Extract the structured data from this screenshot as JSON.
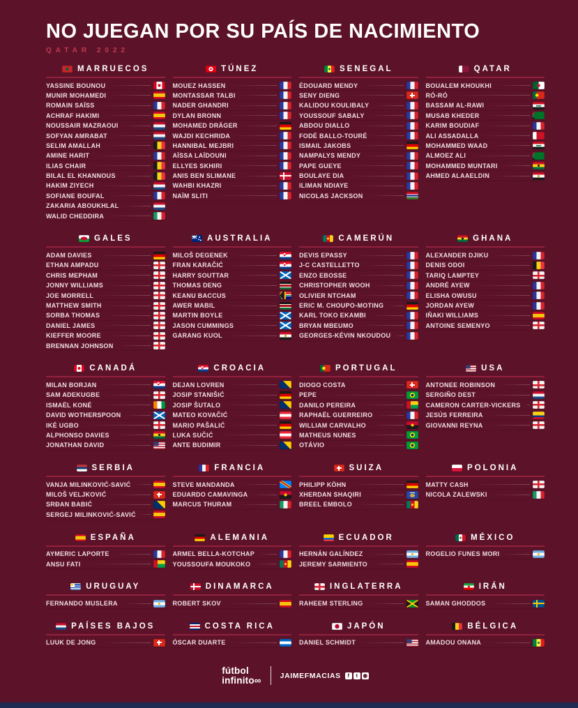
{
  "theme": {
    "background": "#5c1228",
    "accent_line": "#93203f",
    "subtitle_color": "#c23a52",
    "name_color": "#eedee3",
    "bottom_bar": "#1f2b52"
  },
  "header": {
    "title": "NO JUEGAN POR SU PAÍS DE NACIMIENTO",
    "subtitle": "QATAR 2022"
  },
  "footer": {
    "brand_line1": "fútbol",
    "brand_line2": "infinito∞",
    "handle": "JAIMEFMACIAS",
    "social_icons": [
      {
        "name": "facebook-icon",
        "glyph": "f"
      },
      {
        "name": "twitter-icon",
        "glyph": "t"
      },
      {
        "name": "instagram-icon",
        "glyph": "◉"
      }
    ]
  },
  "sections": [
    {
      "country": "MARRUECOS",
      "flag": "morocco",
      "players": [
        {
          "name": "YASSINE BOUNOU",
          "flag": "canada"
        },
        {
          "name": "MUNIR MOHAMEDI",
          "flag": "spain"
        },
        {
          "name": "ROMAIN SAÏSS",
          "flag": "france"
        },
        {
          "name": "ACHRAF HAKIMI",
          "flag": "spain"
        },
        {
          "name": "NOUSSAIR MAZRAOUI",
          "flag": "netherlands"
        },
        {
          "name": "SOFYAN AMRABAT",
          "flag": "netherlands"
        },
        {
          "name": "SELIM AMALLAH",
          "flag": "belgium"
        },
        {
          "name": "AMINE HARIT",
          "flag": "france"
        },
        {
          "name": "ILIAS CHAIR",
          "flag": "belgium"
        },
        {
          "name": "BILAL EL KHANNOUS",
          "flag": "belgium"
        },
        {
          "name": "HAKIM ZIYECH",
          "flag": "netherlands"
        },
        {
          "name": "SOFIANE BOUFAL",
          "flag": "france"
        },
        {
          "name": "ZAKARIA ABOUKHLAL",
          "flag": "netherlands"
        },
        {
          "name": "WALID CHEDDIRA",
          "flag": "italy"
        }
      ]
    },
    {
      "country": "TÚNEZ",
      "flag": "tunisia",
      "players": [
        {
          "name": "MOUEZ HASSEN",
          "flag": "france"
        },
        {
          "name": "MONTASSAR TALBI",
          "flag": "france"
        },
        {
          "name": "NADER GHANDRI",
          "flag": "france"
        },
        {
          "name": "DYLAN BRONN",
          "flag": "france"
        },
        {
          "name": "MOHAMED DRÄGER",
          "flag": "germany"
        },
        {
          "name": "WAJDI KECHRIDA",
          "flag": "france"
        },
        {
          "name": "HANNIBAL MEJBRI",
          "flag": "france"
        },
        {
          "name": "AÏSSA LAÏDOUNI",
          "flag": "france"
        },
        {
          "name": "ELLYES SKHIRI",
          "flag": "france"
        },
        {
          "name": "ANIS BEN SLIMANE",
          "flag": "denmark"
        },
        {
          "name": "WAHBI KHAZRI",
          "flag": "france"
        },
        {
          "name": "NAÏM SLITI",
          "flag": "france"
        }
      ]
    },
    {
      "country": "SENEGAL",
      "flag": "senegal",
      "players": [
        {
          "name": "ÉDOUARD MENDY",
          "flag": "france"
        },
        {
          "name": "SENY DIENG",
          "flag": "switzerland"
        },
        {
          "name": "KALIDOU KOULIBALY",
          "flag": "france"
        },
        {
          "name": "YOUSSOUF SABALY",
          "flag": "france"
        },
        {
          "name": "ABDOU DIALLO",
          "flag": "france"
        },
        {
          "name": "FODÉ BALLO-TOURÉ",
          "flag": "france"
        },
        {
          "name": "ISMAIL JAKOBS",
          "flag": "germany"
        },
        {
          "name": "NAMPALYS MENDY",
          "flag": "france"
        },
        {
          "name": "PAPE GUEYE",
          "flag": "france"
        },
        {
          "name": "BOULAYE DIA",
          "flag": "france"
        },
        {
          "name": "ILIMAN NDIAYE",
          "flag": "france"
        },
        {
          "name": "NICOLAS JACKSON",
          "flag": "gambia"
        }
      ]
    },
    {
      "country": "QATAR",
      "flag": "qatar",
      "players": [
        {
          "name": "BOUALEM KHOUKHI",
          "flag": "algeria"
        },
        {
          "name": "RÓ-RÓ",
          "flag": "portugal"
        },
        {
          "name": "BASSAM AL-RAWI",
          "flag": "iraq"
        },
        {
          "name": "MUSAB KHEDER",
          "flag": "sudan"
        },
        {
          "name": "KARIM BOUDIAF",
          "flag": "france"
        },
        {
          "name": "ALI ASSADALLA",
          "flag": "bahrain"
        },
        {
          "name": "MOHAMMED WAAD",
          "flag": "iraq"
        },
        {
          "name": "ALMOEZ ALI",
          "flag": "sudan"
        },
        {
          "name": "MOHAMMED MUNTARI",
          "flag": "ghana"
        },
        {
          "name": "AHMED ALAAELDIN",
          "flag": "egypt"
        }
      ]
    },
    {
      "country": "GALES",
      "flag": "wales",
      "players": [
        {
          "name": "ADAM DAVIES",
          "flag": "germany"
        },
        {
          "name": "ETHAN AMPADU",
          "flag": "england"
        },
        {
          "name": "CHRIS MEPHAM",
          "flag": "england"
        },
        {
          "name": "JONNY WILLIAMS",
          "flag": "england"
        },
        {
          "name": "JOE MORRELL",
          "flag": "england"
        },
        {
          "name": "MATTHEW SMITH",
          "flag": "england"
        },
        {
          "name": "SORBA THOMAS",
          "flag": "england"
        },
        {
          "name": "DANIEL JAMES",
          "flag": "england"
        },
        {
          "name": "KIEFFER MOORE",
          "flag": "england"
        },
        {
          "name": "BRENNAN JOHNSON",
          "flag": "england"
        }
      ]
    },
    {
      "country": "AUSTRALIA",
      "flag": "australia",
      "players": [
        {
          "name": "MILOŠ DEGENEK",
          "flag": "croatia"
        },
        {
          "name": "FRAN KARAČIĆ",
          "flag": "croatia"
        },
        {
          "name": "HARRY SOUTTAR",
          "flag": "scotland"
        },
        {
          "name": "THOMAS DENG",
          "flag": "kenya"
        },
        {
          "name": "KEANU BACCUS",
          "flag": "south-africa"
        },
        {
          "name": "AWER MABIL",
          "flag": "kenya"
        },
        {
          "name": "MARTIN BOYLE",
          "flag": "scotland"
        },
        {
          "name": "JASON CUMMINGS",
          "flag": "scotland"
        },
        {
          "name": "GARANG KUOL",
          "flag": "egypt"
        }
      ]
    },
    {
      "country": "CAMERÚN",
      "flag": "cameroon",
      "players": [
        {
          "name": "DEVIS EPASSY",
          "flag": "france"
        },
        {
          "name": "J-C CASTELLETTO",
          "flag": "france"
        },
        {
          "name": "ENZO EBOSSE",
          "flag": "france"
        },
        {
          "name": "CHRISTOPHER WOOH",
          "flag": "france"
        },
        {
          "name": "OLIVIER NTCHAM",
          "flag": "france"
        },
        {
          "name": "ERIC M. CHOUPO-MOTING",
          "flag": "germany"
        },
        {
          "name": "KARL TOKO EKAMBI",
          "flag": "france"
        },
        {
          "name": "BRYAN MBEUMO",
          "flag": "france"
        },
        {
          "name": "GEORGES-KÉVIN NKOUDOU",
          "flag": "france"
        }
      ]
    },
    {
      "country": "GHANA",
      "flag": "ghana",
      "players": [
        {
          "name": "ALEXANDER DJIKU",
          "flag": "france"
        },
        {
          "name": "DENIS ODOI",
          "flag": "belgium"
        },
        {
          "name": "TARIQ LAMPTEY",
          "flag": "england"
        },
        {
          "name": "ANDRÉ AYEW",
          "flag": "france"
        },
        {
          "name": "ELISHA OWUSU",
          "flag": "france"
        },
        {
          "name": "JORDAN AYEW",
          "flag": "france"
        },
        {
          "name": "IÑAKI WILLIAMS",
          "flag": "spain"
        },
        {
          "name": "ANTOINE SEMENYO",
          "flag": "england"
        }
      ]
    },
    {
      "country": "CANADÁ",
      "flag": "canada",
      "players": [
        {
          "name": "MILAN BORJAN",
          "flag": "croatia"
        },
        {
          "name": "SAM ADEKUGBE",
          "flag": "england"
        },
        {
          "name": "ISMAËL KONÉ",
          "flag": "ivory-coast"
        },
        {
          "name": "DAVID WOTHERSPOON",
          "flag": "scotland"
        },
        {
          "name": "IKÉ UGBO",
          "flag": "england"
        },
        {
          "name": "ALPHONSO DAVIES",
          "flag": "ghana"
        },
        {
          "name": "JONATHAN DAVID",
          "flag": "usa"
        }
      ]
    },
    {
      "country": "CROACIA",
      "flag": "croatia",
      "players": [
        {
          "name": "DEJAN LOVREN",
          "flag": "bosnia"
        },
        {
          "name": "JOSIP STANIŠIĆ",
          "flag": "germany"
        },
        {
          "name": "JOSIP ŠUTALO",
          "flag": "bosnia"
        },
        {
          "name": "MATEO KOVAČIĆ",
          "flag": "austria"
        },
        {
          "name": "MARIO PAŠALIĆ",
          "flag": "germany"
        },
        {
          "name": "LUKA SUČIĆ",
          "flag": "austria"
        },
        {
          "name": "ANTE BUDIMIR",
          "flag": "bosnia"
        }
      ]
    },
    {
      "country": "PORTUGAL",
      "flag": "portugal",
      "players": [
        {
          "name": "DIOGO COSTA",
          "flag": "switzerland"
        },
        {
          "name": "PEPE",
          "flag": "brazil"
        },
        {
          "name": "DANILO PEREIRA",
          "flag": "guinea-bissau"
        },
        {
          "name": "RAPHAËL GUERREIRO",
          "flag": "france"
        },
        {
          "name": "WILLIAM CARVALHO",
          "flag": "angola"
        },
        {
          "name": "MATHEUS NUNES",
          "flag": "brazil"
        },
        {
          "name": "OTÁVIO",
          "flag": "brazil"
        }
      ]
    },
    {
      "country": "USA",
      "flag": "usa",
      "players": [
        {
          "name": "ANTONEE ROBINSON",
          "flag": "england"
        },
        {
          "name": "SERGIÑO DEST",
          "flag": "netherlands"
        },
        {
          "name": "CAMERON CARTER-VICKERS",
          "flag": "england"
        },
        {
          "name": "JESÚS FERREIRA",
          "flag": "colombia"
        },
        {
          "name": "GIOVANNI REYNA",
          "flag": "england"
        }
      ]
    },
    {
      "country": "SERBIA",
      "flag": "serbia",
      "players": [
        {
          "name": "VANJA MILINKOVIĆ-SAVIĆ",
          "flag": "spain"
        },
        {
          "name": "MILOŠ VELJKOVIĆ",
          "flag": "switzerland"
        },
        {
          "name": "SRĐAN BABIĆ",
          "flag": "bosnia"
        },
        {
          "name": "SERGEJ MILINKOVIĆ-SAVIĆ",
          "flag": "spain"
        }
      ]
    },
    {
      "country": "FRANCIA",
      "flag": "france",
      "players": [
        {
          "name": "STEVE MANDANDA",
          "flag": "dr-congo"
        },
        {
          "name": "EDUARDO CAMAVINGA",
          "flag": "angola"
        },
        {
          "name": "MARCUS THURAM",
          "flag": "italy"
        }
      ]
    },
    {
      "country": "SUIZA",
      "flag": "switzerland",
      "players": [
        {
          "name": "PHILIPP KÖHN",
          "flag": "germany"
        },
        {
          "name": "XHERDAN SHAQIRI",
          "flag": "kosovo"
        },
        {
          "name": "BREEL EMBOLO",
          "flag": "cameroon"
        }
      ]
    },
    {
      "country": "POLONIA",
      "flag": "poland",
      "players": [
        {
          "name": "MATTY CASH",
          "flag": "england"
        },
        {
          "name": "NICOLA ZALEWSKI",
          "flag": "italy"
        }
      ]
    },
    {
      "country": "ESPAÑA",
      "flag": "spain",
      "players": [
        {
          "name": "AYMERIC LAPORTE",
          "flag": "france"
        },
        {
          "name": "ANSU FATI",
          "flag": "guinea-bissau"
        }
      ]
    },
    {
      "country": "ALEMANIA",
      "flag": "germany",
      "players": [
        {
          "name": "ARMEL BELLA-KOTCHAP",
          "flag": "france"
        },
        {
          "name": "YOUSSOUFA MOUKOKO",
          "flag": "cameroon"
        }
      ]
    },
    {
      "country": "ECUADOR",
      "flag": "ecuador",
      "players": [
        {
          "name": "HERNÁN GALÍNDEZ",
          "flag": "argentina"
        },
        {
          "name": "JEREMY SARMIENTO",
          "flag": "spain"
        }
      ]
    },
    {
      "country": "MÉXICO",
      "flag": "mexico",
      "players": [
        {
          "name": "ROGELIO FUNES MORI",
          "flag": "argentina"
        }
      ]
    },
    {
      "country": "URUGUAY",
      "flag": "uruguay",
      "players": [
        {
          "name": "FERNANDO MUSLERA",
          "flag": "argentina"
        }
      ]
    },
    {
      "country": "DINAMARCA",
      "flag": "denmark",
      "players": [
        {
          "name": "ROBERT SKOV",
          "flag": "spain"
        }
      ]
    },
    {
      "country": "INGLATERRA",
      "flag": "england",
      "players": [
        {
          "name": "RAHEEM STERLING",
          "flag": "jamaica"
        }
      ]
    },
    {
      "country": "IRÁN",
      "flag": "iran",
      "players": [
        {
          "name": "SAMAN GHODDOS",
          "flag": "sweden"
        }
      ]
    },
    {
      "country": "PAÍSES BAJOS",
      "flag": "netherlands",
      "players": [
        {
          "name": "LUUK DE JONG",
          "flag": "switzerland"
        }
      ]
    },
    {
      "country": "COSTA RICA",
      "flag": "costa-rica",
      "players": [
        {
          "name": "ÓSCAR DUARTE",
          "flag": "nicaragua"
        }
      ]
    },
    {
      "country": "JAPÓN",
      "flag": "japan",
      "players": [
        {
          "name": "DANIEL SCHMIDT",
          "flag": "usa"
        }
      ]
    },
    {
      "country": "BÉLGICA",
      "flag": "belgium",
      "players": [
        {
          "name": "AMADOU ONANA",
          "flag": "senegal"
        }
      ]
    }
  ]
}
